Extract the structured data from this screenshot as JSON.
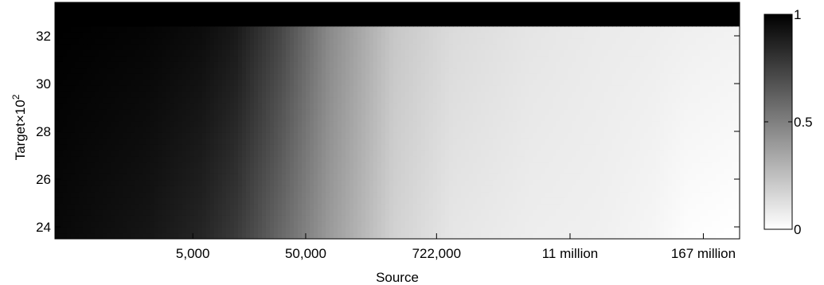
{
  "chart_data": {
    "type": "heatmap",
    "title": "",
    "xlabel": "Source",
    "ylabel": {
      "base": "Target",
      "times": "×",
      "ten": "10",
      "exp": "2"
    },
    "x_scale": "log",
    "x_range": [
      300,
      350000000
    ],
    "x_ticks": [
      {
        "value": 5000,
        "label": "5,000"
      },
      {
        "value": 50000,
        "label": "50,000"
      },
      {
        "value": 722000,
        "label": "722,000"
      },
      {
        "value": 11000000,
        "label": "11 million"
      },
      {
        "value": 167000000,
        "label": "167 million"
      }
    ],
    "y_range": [
      23.5,
      33.4
    ],
    "y_ticks": [
      {
        "value": 24,
        "label": "24"
      },
      {
        "value": 26,
        "label": "26"
      },
      {
        "value": 28,
        "label": "28"
      },
      {
        "value": 30,
        "label": "30"
      },
      {
        "value": 32,
        "label": "32"
      }
    ],
    "saturation_target": 32.4,
    "color_scale": {
      "min": 0,
      "max": 1,
      "low_color": "#ffffff",
      "high_color": "#000000"
    },
    "colorbar_ticks": [
      {
        "value": 0,
        "label": "0"
      },
      {
        "value": 0.5,
        "label": "0.5"
      },
      {
        "value": 1,
        "label": "1"
      }
    ],
    "value_profile": {
      "source": [
        300,
        2000,
        6000,
        12000,
        30000,
        80000,
        300000,
        1000000,
        5000000,
        20000000,
        60000000,
        120000000,
        350000000
      ],
      "value_at_target_24": [
        0.97,
        0.92,
        0.86,
        0.78,
        0.6,
        0.4,
        0.18,
        0.1,
        0.07,
        0.06,
        0.04,
        0.01,
        0.0
      ],
      "value_at_target_32": [
        1.0,
        0.98,
        0.95,
        0.9,
        0.72,
        0.46,
        0.22,
        0.14,
        0.1,
        0.08,
        0.07,
        0.06,
        0.05
      ]
    }
  }
}
